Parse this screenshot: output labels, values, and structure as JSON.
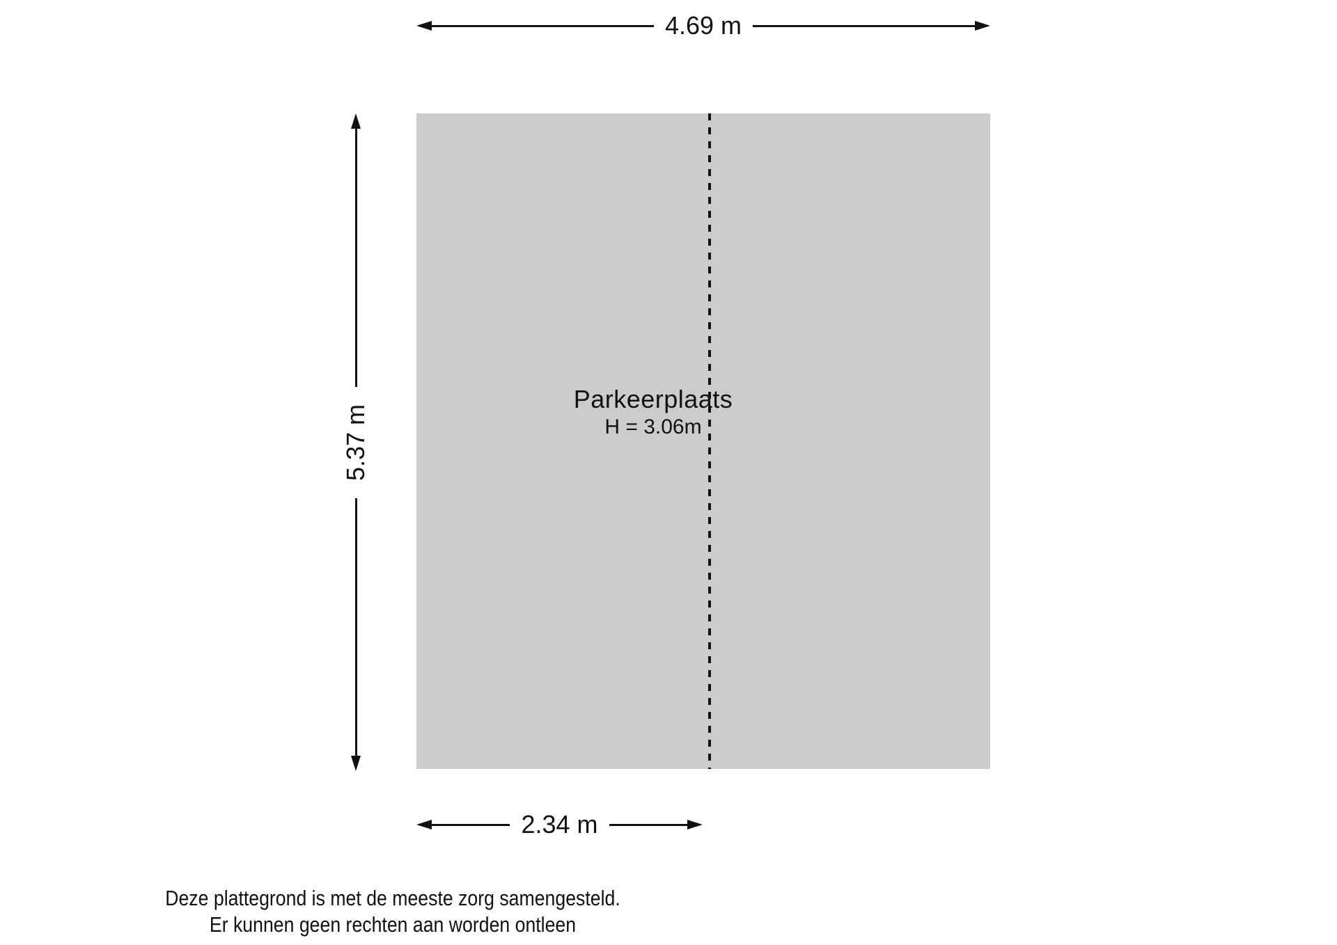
{
  "floorplan": {
    "room": {
      "name_label": "Parkeerplaats",
      "height_label": "H = 3.06m",
      "fill_color": "#cccccc",
      "line_color": "#111111"
    },
    "dimensions": {
      "top_width": "4.69 m",
      "left_height": "5.37 m",
      "bottom_width": "2.34 m"
    },
    "disclaimer": {
      "line1": "Deze plattegrond is met de meeste zorg samengesteld.",
      "line2": "Er kunnen geen rechten aan worden ontleen"
    }
  }
}
